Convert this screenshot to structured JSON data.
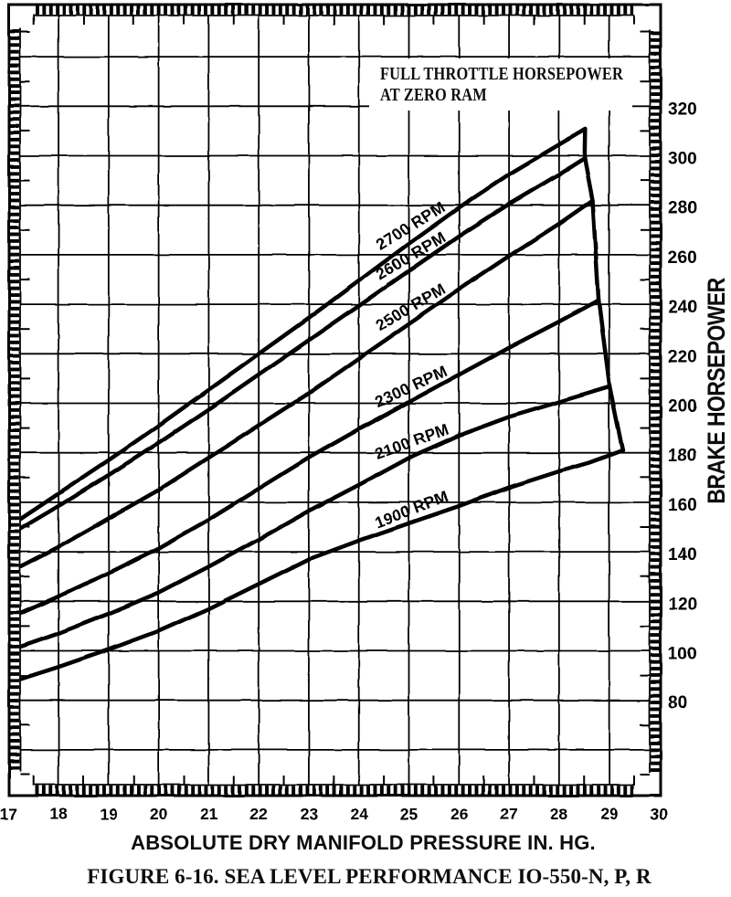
{
  "page": {
    "background": "#ffffff",
    "ink": "#000000"
  },
  "annotation": {
    "line1": "FULL THROTTLE HORSEPOWER",
    "line2": "AT ZERO RAM"
  },
  "x_axis": {
    "title": "ABSOLUTE DRY MANIFOLD PRESSURE IN. HG."
  },
  "y_axis": {
    "title": "BRAKE HORSEPOWER"
  },
  "caption": "FIGURE 6-16. SEA LEVEL PERFORMANCE IO-550-N, P, R",
  "chart_data": {
    "type": "line",
    "title": "FULL THROTTLE HORSEPOWER AT ZERO RAM",
    "xlabel": "ABSOLUTE DRY MANIFOLD PRESSURE IN. HG.",
    "ylabel": "BRAKE HORSEPOWER",
    "xlim": [
      17,
      30
    ],
    "ylim": [
      40,
      360
    ],
    "x_ticks": [
      17,
      18,
      19,
      20,
      21,
      22,
      23,
      24,
      25,
      26,
      27,
      28,
      29,
      30
    ],
    "y_ticks": [
      80,
      100,
      120,
      140,
      160,
      180,
      200,
      220,
      240,
      260,
      280,
      300,
      320
    ],
    "x_grid_step": 1,
    "y_grid_step": 20,
    "x_minor_tick_step": 0.5,
    "y_minor_tick_step": 10,
    "grid": true,
    "legend_position": "labels-on-curves",
    "series": [
      {
        "name": "2700 RPM",
        "rpm": 2700,
        "x": [
          17,
          18,
          19,
          20,
          21,
          22,
          23,
          24,
          25,
          26,
          27,
          28,
          28.52
        ],
        "hp": [
          150,
          163.5,
          177,
          191,
          205.5,
          220,
          234.5,
          249.5,
          264.5,
          279,
          292.5,
          304.5,
          310.7
        ]
      },
      {
        "name": "2600 RPM",
        "rpm": 2600,
        "x": [
          17,
          18,
          19,
          20,
          21,
          22,
          23,
          24,
          25,
          26,
          27,
          28,
          28.51
        ],
        "hp": [
          146.5,
          158.5,
          171,
          184,
          197.5,
          211.5,
          225.5,
          239.5,
          253.5,
          267.5,
          280.5,
          292.5,
          299
        ]
      },
      {
        "name": "2500 RPM",
        "rpm": 2500,
        "x": [
          17,
          18,
          19,
          20,
          21,
          22,
          23,
          24,
          25,
          26,
          27,
          28,
          28.67
        ],
        "hp": [
          131.5,
          142,
          153.5,
          165,
          178,
          191,
          204,
          218,
          232,
          246,
          259.5,
          272.5,
          282
        ]
      },
      {
        "name": "2300 RPM",
        "rpm": 2300,
        "x": [
          17,
          18,
          19,
          20,
          21,
          22,
          23,
          24,
          25,
          26,
          27,
          28,
          28.79
        ],
        "hp": [
          113,
          122,
          131.5,
          141.5,
          153,
          165.5,
          178,
          189.5,
          200.5,
          211.5,
          222.5,
          233,
          241.7
        ]
      },
      {
        "name": "2100 RPM",
        "rpm": 2100,
        "x": [
          17,
          18,
          19,
          20,
          21,
          22,
          23,
          24,
          25,
          26,
          27,
          28,
          29.01
        ],
        "hp": [
          100,
          107,
          115,
          123.5,
          134,
          145,
          156.5,
          167,
          178,
          187,
          194.5,
          200.5,
          206.7
        ]
      },
      {
        "name": "1900 RPM",
        "rpm": 1900,
        "x": [
          17,
          18,
          19,
          20,
          21,
          22,
          23,
          24,
          25,
          26,
          27,
          28,
          28.6,
          29.27
        ],
        "hp": [
          87,
          93.5,
          100.5,
          108,
          117,
          127,
          137,
          144.5,
          151.5,
          158.5,
          166,
          172.5,
          176,
          181
        ]
      }
    ],
    "full_throttle_envelope": {
      "x": [
        28.52,
        28.51,
        28.67,
        28.79,
        29.01,
        29.27
      ],
      "hp": [
        310.7,
        299,
        282,
        241.7,
        206.7,
        181
      ]
    },
    "series_labels": [
      {
        "text": "2700 RPM",
        "x": 25.09,
        "hp": 265.8,
        "rotation": -31.5,
        "offset": 11
      },
      {
        "text": "2600 RPM",
        "x": 25.09,
        "hp": 254.8,
        "rotation": -31.0,
        "offset": 8
      },
      {
        "text": "2500 RPM",
        "x": 25.09,
        "hp": 233.3,
        "rotation": -30.5,
        "offset": 10
      },
      {
        "text": "2300 RPM",
        "x": 25.09,
        "hp": 201.5,
        "rotation": -25.0,
        "offset": 9
      },
      {
        "text": "2100 RPM",
        "x": 25.09,
        "hp": 178.8,
        "rotation": -19.5,
        "offset": 10
      },
      {
        "text": "1900 RPM",
        "x": 25.09,
        "hp": 152.2,
        "rotation": -21.0,
        "offset": 8
      }
    ],
    "annotation": "FULL THROTTLE HORSEPOWER AT ZERO RAM",
    "caption": "FIGURE 6-16. SEA LEVEL PERFORMANCE IO-550-N, P, R"
  }
}
